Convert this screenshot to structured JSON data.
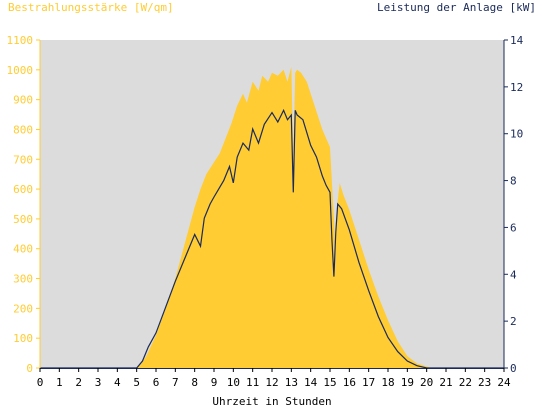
{
  "chart_data": {
    "type": "area",
    "title_left": "Bestrahlungsstärke [W/qm]",
    "title_right": "Leistung der Anlage [kW]",
    "xlabel": "Uhrzeit in Stunden",
    "xlim": [
      0,
      24
    ],
    "x_ticks": [
      "0",
      "1",
      "2",
      "3",
      "4",
      "5",
      "6",
      "7",
      "8",
      "9",
      "10",
      "11",
      "12",
      "13",
      "14",
      "15",
      "16",
      "17",
      "18",
      "19",
      "20",
      "21",
      "22",
      "23",
      "24"
    ],
    "y_left": {
      "lim": [
        0,
        1100
      ],
      "ticks": [
        "0",
        "100",
        "200",
        "300",
        "400",
        "500",
        "600",
        "700",
        "800",
        "900",
        "1000",
        "1100"
      ]
    },
    "y_right": {
      "lim": [
        0,
        14
      ],
      "ticks": [
        "0",
        "2",
        "4",
        "6",
        "8",
        "10",
        "12",
        "14"
      ]
    },
    "series": [
      {
        "name": "Bestrahlungsstärke [W/qm]",
        "axis": "left",
        "kind": "area",
        "color": "#ffcc33",
        "x": [
          0,
          5.0,
          5.2,
          5.5,
          6.0,
          6.5,
          7.0,
          7.5,
          8.0,
          8.3,
          8.6,
          9.0,
          9.3,
          9.6,
          9.9,
          10.2,
          10.5,
          10.7,
          11.0,
          11.3,
          11.5,
          11.8,
          12.0,
          12.3,
          12.6,
          12.8,
          13.0,
          13.1,
          13.2,
          13.3,
          13.5,
          13.8,
          14.0,
          14.3,
          14.6,
          15.0,
          15.2,
          15.3,
          15.4,
          15.5,
          15.7,
          16.0,
          16.5,
          17.0,
          17.5,
          18.0,
          18.5,
          19.0,
          19.5,
          20.0,
          20.3,
          20.5,
          24
        ],
        "values": [
          0,
          0,
          10,
          40,
          110,
          200,
          300,
          420,
          540,
          600,
          650,
          690,
          720,
          770,
          820,
          880,
          920,
          890,
          960,
          930,
          980,
          960,
          990,
          980,
          1000,
          960,
          1010,
          700,
          990,
          1000,
          990,
          960,
          920,
          860,
          800,
          740,
          500,
          400,
          560,
          620,
          580,
          530,
          430,
          330,
          240,
          160,
          90,
          40,
          15,
          5,
          0,
          0,
          0
        ]
      },
      {
        "name": "Leistung der Anlage [kW]",
        "axis": "right",
        "kind": "line",
        "color": "#1a2a5a",
        "x": [
          0,
          5.0,
          5.3,
          5.6,
          6.0,
          6.5,
          7.0,
          7.5,
          8.0,
          8.3,
          8.5,
          8.8,
          9.0,
          9.5,
          9.8,
          10.0,
          10.2,
          10.5,
          10.8,
          11.0,
          11.3,
          11.6,
          12.0,
          12.3,
          12.6,
          12.8,
          13.0,
          13.1,
          13.2,
          13.3,
          13.6,
          14.0,
          14.3,
          14.6,
          14.8,
          15.0,
          15.1,
          15.2,
          15.3,
          15.4,
          15.6,
          16.0,
          16.5,
          17.0,
          17.5,
          18.0,
          18.5,
          19.0,
          19.5,
          20.0,
          20.3,
          24
        ],
        "values": [
          0,
          0,
          0.3,
          0.9,
          1.5,
          2.6,
          3.7,
          4.7,
          5.7,
          5.2,
          6.4,
          7.0,
          7.3,
          8.0,
          8.6,
          7.9,
          9.0,
          9.6,
          9.3,
          10.2,
          9.6,
          10.4,
          10.9,
          10.5,
          11.0,
          10.6,
          10.8,
          7.5,
          11.0,
          10.8,
          10.6,
          9.5,
          9.0,
          8.2,
          7.8,
          7.5,
          5.5,
          3.9,
          5.8,
          7.0,
          6.8,
          5.9,
          4.5,
          3.3,
          2.2,
          1.3,
          0.7,
          0.3,
          0.1,
          0,
          0,
          0
        ]
      }
    ],
    "grid": false,
    "plot_background": "#dcdcdc"
  }
}
